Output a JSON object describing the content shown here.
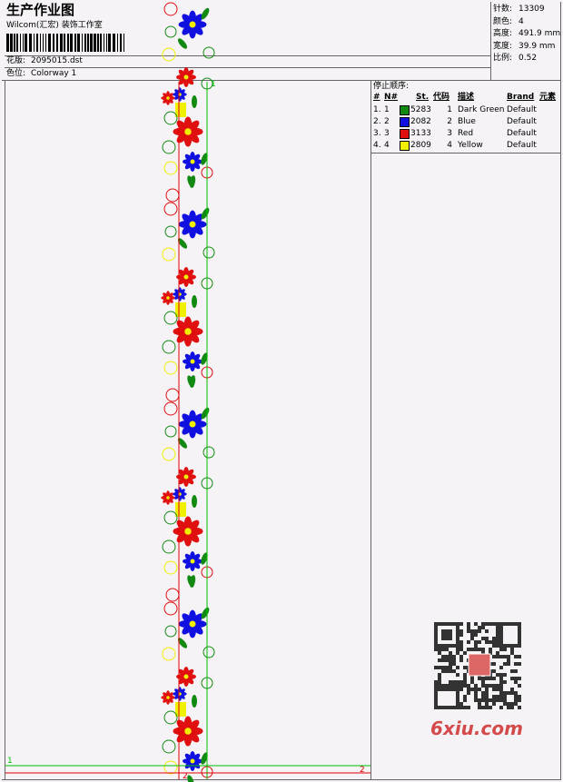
{
  "header": {
    "title": "生产作业图",
    "studio": "Wilcom(汇宏) 装饰工作室",
    "design": {
      "label": "花版:",
      "value": "2095015.dst"
    },
    "colorway": {
      "label": "色位:",
      "value": "Colorway 1"
    }
  },
  "info": [
    {
      "label": "针数:",
      "value": "13309"
    },
    {
      "label": "颜色:",
      "value": "4"
    },
    {
      "label": "高度:",
      "value": "491.9 mm"
    },
    {
      "label": "宽度:",
      "value": "39.9 mm"
    },
    {
      "label": "比例:",
      "value": "0.52"
    }
  ],
  "stop_sequence": {
    "title": "停止顺序:",
    "columns": [
      "#",
      "N#",
      "St.",
      "代码",
      "描述",
      "Brand",
      "元素"
    ],
    "rows": [
      {
        "index": "1.",
        "needle": "1",
        "color": "#128a12",
        "stitches": "5283",
        "code": "1",
        "description": "Dark Green",
        "brand": "Default"
      },
      {
        "index": "2.",
        "needle": "2",
        "color": "#1010e0",
        "stitches": "2082",
        "code": "2",
        "description": "Blue",
        "brand": "Default"
      },
      {
        "index": "3.",
        "needle": "3",
        "color": "#e01010",
        "stitches": "3133",
        "code": "3",
        "description": "Red",
        "brand": "Default"
      },
      {
        "index": "4.",
        "needle": "4",
        "color": "#f0f000",
        "stitches": "2809",
        "code": "4",
        "description": "Yellow",
        "brand": "Default"
      }
    ]
  },
  "markers": [
    {
      "label": "1",
      "color": "#00c000"
    },
    {
      "label": "1",
      "color": "#00c000"
    },
    {
      "label": "2",
      "color": "#e00000"
    },
    {
      "label": "2",
      "color": "#e00000"
    }
  ],
  "watermark": "6xiu.com"
}
